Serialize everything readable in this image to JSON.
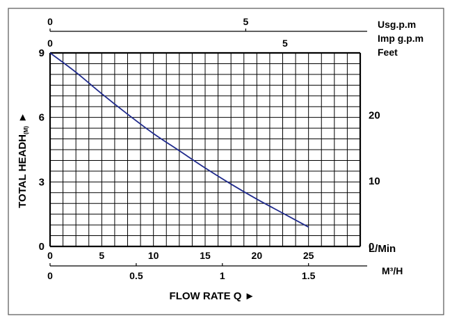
{
  "chart_data": {
    "type": "line",
    "title": "",
    "xlabel": "FLOW RATE Q ►",
    "ylabel": "TOTAL HEADH",
    "ylabel_sub": "(M)",
    "ylabel_arrow": "►",
    "xlim": [
      0,
      30
    ],
    "ylim": [
      0,
      9
    ],
    "x_ticks": [
      0,
      5,
      10,
      15,
      20,
      25
    ],
    "x_tick_labels": [
      "0",
      "5",
      "10",
      "15",
      "20",
      "25"
    ],
    "x_unit_label": "L/Min",
    "y_ticks": [
      0,
      3,
      6,
      9
    ],
    "y_tick_labels": [
      "0",
      "3",
      "6",
      "9"
    ],
    "grid": true,
    "secondary_axes": {
      "m3h": {
        "label": "M³/H",
        "ticks": [
          0,
          0.5,
          1,
          1.5
        ],
        "tick_labels": [
          "0",
          "0.5",
          "1",
          "1.5"
        ]
      },
      "usgpm": {
        "label": "Usg.p.m",
        "ticks": [
          0,
          5
        ],
        "tick_labels": [
          "0",
          "5"
        ]
      },
      "impgpm": {
        "label": "Imp g.p.m",
        "ticks": [
          0,
          5
        ],
        "tick_labels": [
          "0",
          "5"
        ]
      },
      "feet": {
        "label": "Feet",
        "ticks": [
          0,
          10,
          20
        ],
        "tick_labels": [
          "0",
          "10",
          "20"
        ]
      }
    },
    "series": [
      {
        "color": "#1f2a8c",
        "x": [
          0,
          2.5,
          5,
          7.5,
          10,
          12.5,
          15,
          17.5,
          20,
          22.5,
          25
        ],
        "y": [
          9.0,
          8.1,
          7.1,
          6.15,
          5.25,
          4.45,
          3.65,
          2.9,
          2.2,
          1.55,
          0.9
        ]
      }
    ]
  }
}
